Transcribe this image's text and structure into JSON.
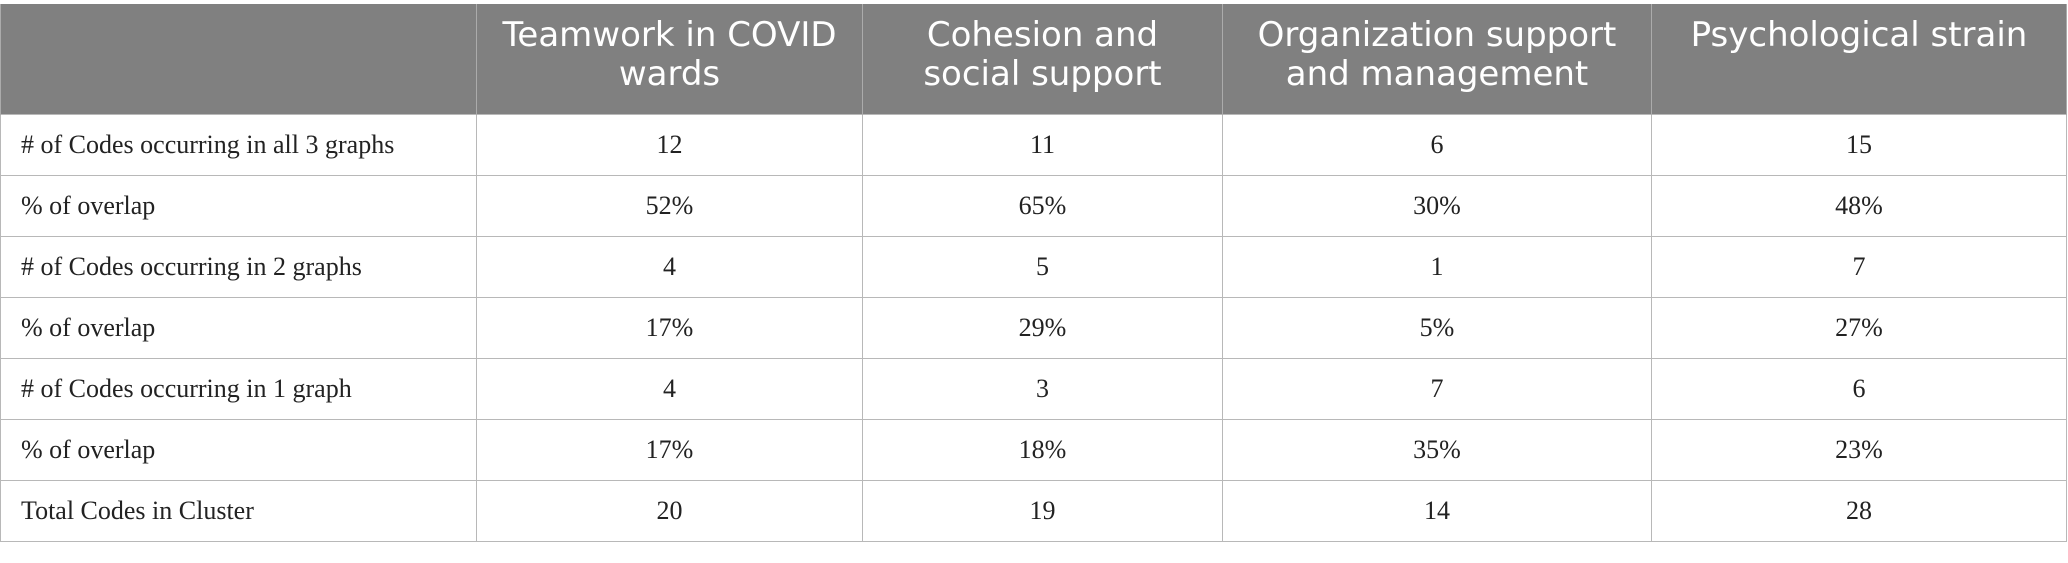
{
  "table": {
    "headers": [
      "",
      "Teamwork in COVID wards",
      "Cohesion and social support",
      "Organization support and management",
      "Psychological strain"
    ],
    "rows": [
      {
        "label": "# of Codes occurring in all 3 graphs",
        "values": [
          "12",
          "11",
          "6",
          "15"
        ]
      },
      {
        "label": "% of overlap",
        "values": [
          "52%",
          "65%",
          "30%",
          "48%"
        ]
      },
      {
        "label": "# of Codes occurring in 2 graphs",
        "values": [
          "4",
          "5",
          "1",
          "7"
        ]
      },
      {
        "label": "% of overlap",
        "values": [
          "17%",
          "29%",
          "5%",
          "27%"
        ]
      },
      {
        "label": "# of Codes occurring in 1 graph",
        "values": [
          "4",
          "3",
          "7",
          "6"
        ]
      },
      {
        "label": "% of overlap",
        "values": [
          "17%",
          "18%",
          "35%",
          "23%"
        ]
      },
      {
        "label": "Total Codes in Cluster",
        "values": [
          "20",
          "19",
          "14",
          "28"
        ]
      }
    ]
  },
  "colors": {
    "header_background": "#808080",
    "header_text": "#ffffff",
    "grid_lines": "#b8b8b8",
    "body_text": "#222222"
  }
}
